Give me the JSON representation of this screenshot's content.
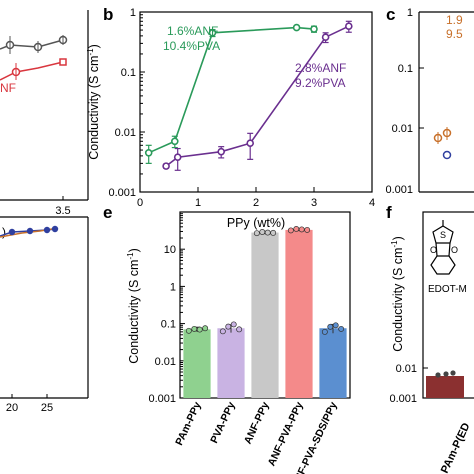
{
  "colors": {
    "green": "#2a9a5a",
    "purple": "#6a2f8f",
    "gray": "#555555",
    "red": "#d9363e",
    "orange": "#c8702a",
    "blue": "#2f3f9f",
    "bar_pam": "#8fd18f",
    "bar_pva": "#c9b3e3",
    "bar_anf": "#c8c8c8",
    "bar_anfpva": "#f48a8a",
    "bar_sds": "#5b8fd0",
    "bar_f": "#8b3030"
  },
  "panels": {
    "a": {
      "tick_x": "3.5",
      "legend_fragment": "NF",
      "bottom_label": ")"
    },
    "b": {
      "label": "b"
    },
    "c": {
      "label": "c",
      "legend_line1": "1.9",
      "legend_line2": "9.5"
    },
    "d": {
      "ticks_x": [
        "20",
        "25"
      ]
    },
    "e": {
      "label": "e"
    },
    "f": {
      "label": "f",
      "structure_label": "EDOT-M",
      "category_fragment": "PAm-P(ED"
    }
  },
  "chart_data": [
    {
      "id": "b",
      "type": "line",
      "xlabel": "PPy (wt%)",
      "ylabel": "Conductivity (S cm",
      "ylabel_sup": "-1",
      "ylabel_close": ")",
      "xlim": [
        0,
        4
      ],
      "ylim": [
        0.001,
        1
      ],
      "yscale": "log",
      "xticks": [
        "0",
        "1",
        "2",
        "3",
        "4"
      ],
      "yticks": [
        "0.001",
        "0.01",
        "0.1",
        "1"
      ],
      "series": [
        {
          "name_line1": "1.6%ANF",
          "name_line2": "10.4%PVA",
          "color_key": "green",
          "x": [
            0.15,
            0.6,
            1.25,
            2.7,
            3.0
          ],
          "y": [
            0.0045,
            0.007,
            0.45,
            0.55,
            0.52
          ],
          "err": [
            0.0015,
            0.0015,
            0.06,
            0.03,
            0.06
          ]
        },
        {
          "name_line1": "2.8%ANF",
          "name_line2": "9.2%PVA",
          "color_key": "purple",
          "x": [
            0.45,
            0.65,
            1.4,
            1.9,
            3.2,
            3.6
          ],
          "y": [
            0.0027,
            0.0038,
            0.0047,
            0.0065,
            0.38,
            0.58
          ],
          "err": [
            0.0002,
            0.0015,
            0.001,
            0.003,
            0.07,
            0.12
          ]
        }
      ]
    },
    {
      "id": "e",
      "type": "bar",
      "ylabel": "Conductivity (S cm",
      "ylabel_sup": "-1",
      "ylabel_close": ")",
      "yscale": "log",
      "ylim": [
        0.001,
        100
      ],
      "yticks": [
        "0.001",
        "0.01",
        "0.1",
        "1",
        "10"
      ],
      "categories": [
        "PAm-PPy",
        "PVA-PPy",
        "ANF-PPy",
        "ANF-PVA-PPy",
        "ANF-PVA-SDS/PPy"
      ],
      "values": [
        0.07,
        0.075,
        28,
        33,
        0.075
      ],
      "err": [
        0.01,
        0.018,
        2.5,
        2.5,
        0.02
      ],
      "bar_color_keys": [
        "bar_pam",
        "bar_pva",
        "bar_anf",
        "bar_anfpva",
        "bar_sds"
      ],
      "points": [
        [
          0.064,
          0.072,
          0.069,
          0.075
        ],
        [
          0.062,
          0.083,
          0.095,
          0.07
        ],
        [
          27.0,
          29.0,
          28.0,
          27.5
        ],
        [
          32.0,
          35.0,
          34.0,
          33.0
        ],
        [
          0.06,
          0.082,
          0.09,
          0.072
        ]
      ]
    }
  ]
}
